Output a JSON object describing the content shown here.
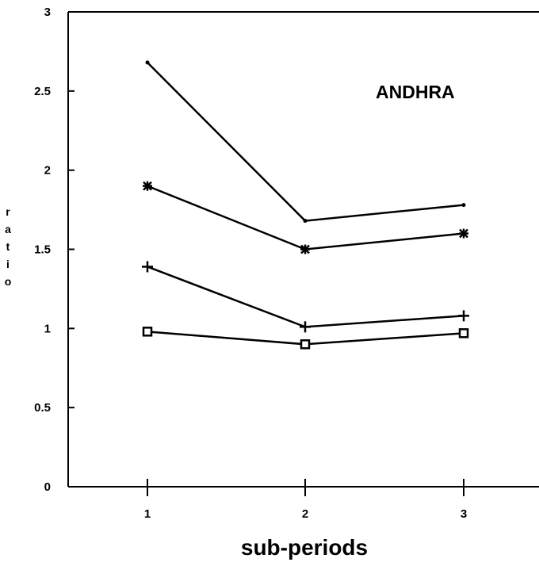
{
  "chart_data": {
    "type": "line",
    "title": "",
    "annotation": "ANDHRA",
    "xlabel": "sub-periods",
    "ylabel": "ratio",
    "x": [
      1,
      2,
      3
    ],
    "x_tick_labels": [
      "1",
      "2",
      "3"
    ],
    "y_ticks": [
      0,
      0.5,
      1,
      1.5,
      2,
      2.5,
      3
    ],
    "y_tick_labels": [
      "0",
      "0.5",
      "1",
      "1.5",
      "2",
      "2.5",
      "3"
    ],
    "ylim": [
      0,
      3
    ],
    "xlim": [
      0.5,
      3.5
    ],
    "grid": false,
    "legend": "none",
    "series": [
      {
        "marker": "dot",
        "values": [
          2.68,
          1.68,
          1.78
        ]
      },
      {
        "marker": "asterisk",
        "values": [
          1.9,
          1.5,
          1.6
        ]
      },
      {
        "marker": "plus",
        "values": [
          1.39,
          1.01,
          1.08
        ]
      },
      {
        "marker": "square",
        "values": [
          0.98,
          0.9,
          0.97
        ]
      }
    ],
    "colors": {
      "line": "#000000",
      "background": "#ffffff"
    }
  }
}
